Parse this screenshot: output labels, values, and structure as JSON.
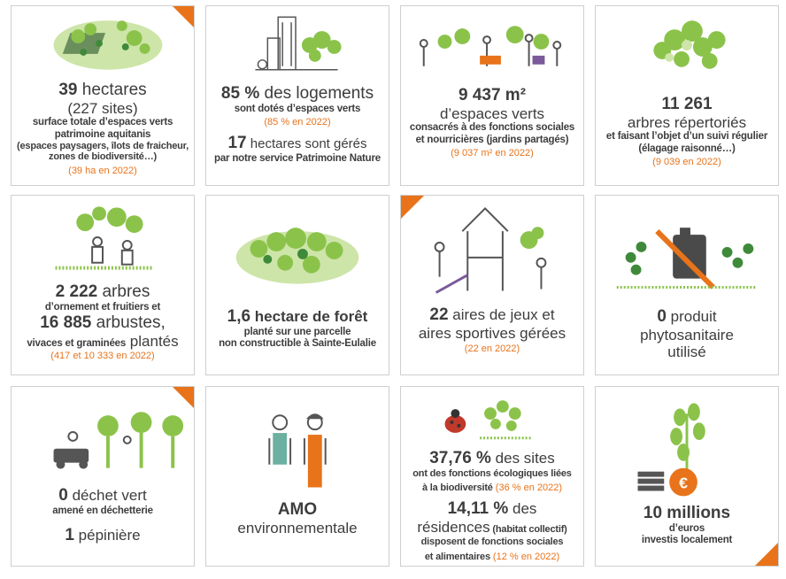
{
  "cells": {
    "c1": {
      "l1_num": "39",
      "l1_rest": " hectares",
      "l2": "(227 sites)",
      "l3": "surface totale d’espaces verts",
      "l4": "patrimoine aquitanis",
      "l5": "(espaces paysagers, îlots de fraicheur,",
      "l6": "zones de biodiversité…)",
      "note": "(39 ha en 2022)"
    },
    "c2": {
      "l1_num": "85 %",
      "l1_rest": " des logements",
      "l2": "sont dotés d’espaces verts",
      "note": "(85 % en 2022)",
      "l3_num": "17",
      "l3_rest": " hectares sont gérés",
      "l4": "par notre service Patrimoine Nature"
    },
    "c3": {
      "l1": "9 437 m²",
      "l2": "d’espaces verts",
      "l3": "consacrés à des fonctions sociales",
      "l4": "et nourricières (jardins partagés)",
      "note": "(9 037 m² en 2022)"
    },
    "c4": {
      "l1": "11 261",
      "l2": "arbres répertoriés",
      "l3": "et faisant l’objet d’un suivi régulier",
      "l4": "(élagage raisonné…)",
      "note": "(9 039 en 2022)"
    },
    "c5": {
      "l1_num": "2 222",
      "l1_rest": " arbres",
      "l2": "d’ornement et fruitiers et",
      "l3_num": "16 885",
      "l3_rest": " arbustes,",
      "l4_small": "vivaces et graminées",
      "l4_big": " plantés",
      "note": "(417 et 10 333 en 2022)"
    },
    "c6": {
      "l1_num": "1,6",
      "l1_rest": " hectare de forêt",
      "l2": "planté sur une parcelle",
      "l3": "non constructible à Sainte-Eulalie"
    },
    "c7": {
      "l1_num": "22",
      "l1_rest": " aires de jeux et",
      "l2": "aires sportives gérées",
      "note": "(22 en 2022)"
    },
    "c8": {
      "l1_num": "0",
      "l1_rest": " produit",
      "l2": "phytosanitaire",
      "l3": "utilisé"
    },
    "c9": {
      "l1_num": "0",
      "l1_rest": " déchet vert",
      "l2": "amené en déchetterie",
      "l3_num": "1",
      "l3_rest": " pépinière"
    },
    "c10": {
      "l1": "AMO",
      "l2": "environnementale"
    },
    "c11": {
      "l1_num": "37,76 %",
      "l1_rest": " des sites",
      "l2": "ont des fonctions  écologiques liées",
      "l3": "à la biodiversité",
      "l3_note": " (36 % en 2022)",
      "l4_num": "14,11 %",
      "l4_rest": " des",
      "l5_big": "résidences",
      "l5_small": " (habitat collectif)",
      "l6": "disposent de fonctions sociales",
      "l7": "et alimentaires",
      "l7_note": "  (12 % en 2022)"
    },
    "c12": {
      "l1": "10 millions",
      "l2": "d’euros",
      "l3": "investis localement",
      "coin_symbol": "€"
    }
  },
  "colors": {
    "accent": "#e8731a",
    "green": "#8bc34a",
    "dark_green": "#3f8a3a",
    "text": "#3d3d3d"
  },
  "icons": [
    "park-aerial-icon",
    "buildings-trees-icon",
    "community-garden-icon",
    "trees-icon",
    "gardeners-icon",
    "forest-icon",
    "playground-icon",
    "no-pesticide-icon",
    "mower-icon",
    "workers-icon",
    "ladybug-plants-icon",
    "euro-plant-icon"
  ]
}
